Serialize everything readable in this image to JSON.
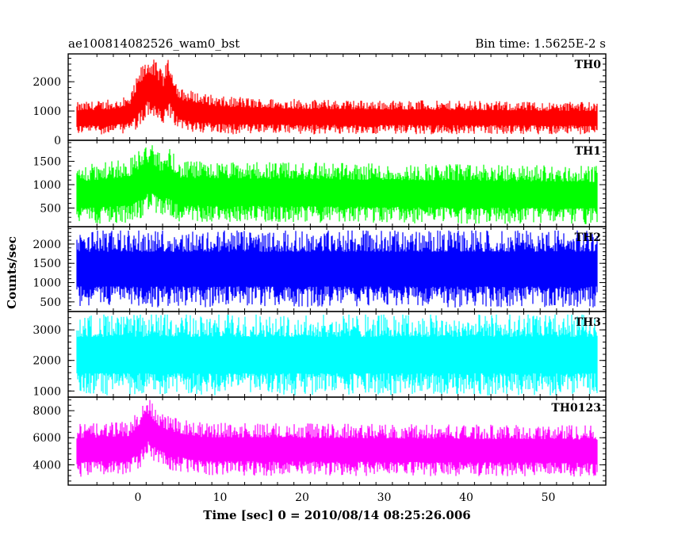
{
  "chart_data": {
    "type": "line",
    "title_left": "ae100814082526_wam0_bst",
    "title_right": "Bin time: 1.5625E-2 s",
    "xlabel": "Time [sec] 0 = 2010/08/14 08:25:26.006",
    "ylabel": "Counts/sec",
    "xlim": [
      -8.5,
      57
    ],
    "x_ticks": [
      0,
      10,
      20,
      30,
      40,
      50
    ],
    "x_data_range": [
      -7.5,
      56
    ],
    "panels": [
      {
        "name": "TH0",
        "color": "#ff0000",
        "ylim": [
          0,
          2950
        ],
        "y_ticks": [
          0,
          1000,
          2000
        ],
        "envelope": [
          {
            "x": -7.5,
            "low": 200,
            "high": 1300
          },
          {
            "x": -3,
            "low": 200,
            "high": 1400
          },
          {
            "x": -1,
            "low": 250,
            "high": 1500
          },
          {
            "x": 0.3,
            "low": 400,
            "high": 2500
          },
          {
            "x": 1.3,
            "low": 800,
            "high": 2900
          },
          {
            "x": 2.2,
            "low": 600,
            "high": 2700
          },
          {
            "x": 3.0,
            "low": 400,
            "high": 2300
          },
          {
            "x": 3.8,
            "low": 700,
            "high": 2850
          },
          {
            "x": 5,
            "low": 300,
            "high": 1800
          },
          {
            "x": 10,
            "low": 200,
            "high": 1500
          },
          {
            "x": 20,
            "low": 200,
            "high": 1400
          },
          {
            "x": 56,
            "low": 200,
            "high": 1300
          }
        ]
      },
      {
        "name": "TH1",
        "color": "#00ff00",
        "ylim": [
          100,
          1950
        ],
        "y_ticks": [
          500,
          1000,
          1500
        ],
        "envelope": [
          {
            "x": -7.5,
            "low": 150,
            "high": 1400
          },
          {
            "x": -1,
            "low": 180,
            "high": 1550
          },
          {
            "x": 0.3,
            "low": 250,
            "high": 1800
          },
          {
            "x": 1.5,
            "low": 450,
            "high": 1900
          },
          {
            "x": 3.0,
            "low": 300,
            "high": 1600
          },
          {
            "x": 3.8,
            "low": 350,
            "high": 1800
          },
          {
            "x": 5,
            "low": 200,
            "high": 1500
          },
          {
            "x": 56,
            "low": 150,
            "high": 1400
          }
        ]
      },
      {
        "name": "TH2",
        "color": "#0000ff",
        "ylim": [
          250,
          2450
        ],
        "y_ticks": [
          500,
          1000,
          1500,
          2000
        ],
        "envelope": [
          {
            "x": -7.5,
            "low": 350,
            "high": 2350
          },
          {
            "x": 56,
            "low": 350,
            "high": 2350
          }
        ]
      },
      {
        "name": "TH3",
        "color": "#00ffff",
        "ylim": [
          800,
          3600
        ],
        "y_ticks": [
          1000,
          2000,
          3000
        ],
        "envelope": [
          {
            "x": -7.5,
            "low": 850,
            "high": 3500
          },
          {
            "x": 56,
            "low": 850,
            "high": 3500
          }
        ]
      },
      {
        "name": "TH0123",
        "color": "#ff00ff",
        "ylim": [
          2500,
          9000
        ],
        "y_ticks": [
          4000,
          6000,
          8000
        ],
        "envelope": [
          {
            "x": -7.5,
            "low": 3100,
            "high": 7000
          },
          {
            "x": -1,
            "low": 3300,
            "high": 7200
          },
          {
            "x": 0.3,
            "low": 3800,
            "high": 8200
          },
          {
            "x": 1.3,
            "low": 4600,
            "high": 8900
          },
          {
            "x": 2.5,
            "low": 4000,
            "high": 8000
          },
          {
            "x": 4,
            "low": 3600,
            "high": 7500
          },
          {
            "x": 8,
            "low": 3200,
            "high": 7100
          },
          {
            "x": 56,
            "low": 3100,
            "high": 6900
          }
        ]
      }
    ]
  }
}
